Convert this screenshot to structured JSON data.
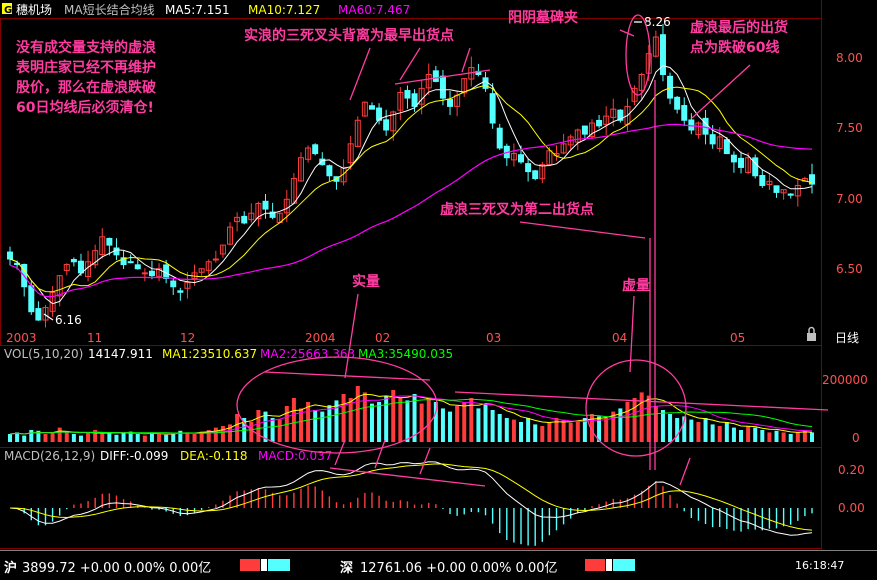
{
  "window": {
    "logo": "G",
    "stock_name": "穗机场",
    "indicator_name": "MA短长结合均线",
    "ma5_label": "MA5:7.151",
    "ma10_label": "MA10:7.127",
    "ma60_label": "MA60:7.467",
    "period_label": "日线"
  },
  "colors": {
    "background": "#000000",
    "up_candle": "#ff3c3c",
    "down_candle": "#54ffff",
    "ma5": "#ffffff",
    "ma10": "#ffff00",
    "ma60": "#ff00ff",
    "vol_ma1": "#ffff00",
    "vol_ma2": "#ff00ff",
    "vol_ma3": "#00ff00",
    "grid": "#800000",
    "annotation": "#ff3ca0",
    "axis_text": "#ff5050"
  },
  "volume_header": {
    "label": "VOL(5,10,20)",
    "value": "14147.911",
    "ma1": "MA1:23510.637",
    "ma2": "MA2:25663.363",
    "ma3": "MA3:35490.035"
  },
  "macd_header": {
    "label": "MACD(26,12,9)",
    "diff": "DIFF:-0.099",
    "dea": "DEA:-0.118",
    "macd": "MACD:0.037"
  },
  "annotations": {
    "left_note": [
      "没有成交量支持的虚浪",
      "表明庄家已经不再维护",
      "股价，那么在虚浪跌破",
      "60日均线后必须清仓!"
    ],
    "real_wave_note": "实浪的三死叉头背离为最早出货点",
    "tombstone_note": "阳阴墓碑夹",
    "last_sell_note": [
      "虚浪最后的出货",
      "点为跌破60线"
    ],
    "second_sell_note": "虚浪三死叉为第二出货点",
    "real_volume_label": "实量",
    "fake_volume_label": "虚量",
    "high_label": "8.26",
    "low_label": "6.16"
  },
  "status_bar": {
    "sh_label": "沪",
    "sh_value": "3899.72 +0.00 0.00% 0.00亿",
    "sz_label": "深",
    "sz_value": "12761.06 +0.00 0.00% 0.00亿",
    "time": "16:18:47"
  },
  "chart_data": [
    {
      "type": "candlestick",
      "title": "穗机场 MA短长结合均线",
      "y_ticks": [
        "6.50",
        "7.00",
        "7.50",
        "8.00"
      ],
      "ylim": [
        6.0,
        8.35
      ],
      "x_ticks": [
        "2003",
        "11",
        "12",
        "2004",
        "02",
        "03",
        "04",
        "05"
      ],
      "annotated_high": 8.26,
      "annotated_low": 6.16,
      "series": [
        {
          "name": "MA5",
          "value": 7.151
        },
        {
          "name": "MA10",
          "value": 7.127
        },
        {
          "name": "MA60",
          "value": 7.467
        }
      ],
      "close_path": [
        6.62,
        6.58,
        6.42,
        6.24,
        6.18,
        6.27,
        6.38,
        6.5,
        6.58,
        6.6,
        6.52,
        6.6,
        6.68,
        6.78,
        6.72,
        6.65,
        6.58,
        6.6,
        6.55,
        6.52,
        6.5,
        6.55,
        6.48,
        6.42,
        6.38,
        6.45,
        6.52,
        6.55,
        6.6,
        6.62,
        6.72,
        6.85,
        6.92,
        6.88,
        6.95,
        7.02,
        6.98,
        6.92,
        6.95,
        7.05,
        7.2,
        7.35,
        7.42,
        7.38,
        7.3,
        7.22,
        7.18,
        7.28,
        7.45,
        7.62,
        7.75,
        7.7,
        7.62,
        7.55,
        7.68,
        7.82,
        7.78,
        7.72,
        7.85,
        7.95,
        7.9,
        7.78,
        7.72,
        7.8,
        7.92,
        8.0,
        7.95,
        7.85,
        7.6,
        7.42,
        7.35,
        7.38,
        7.32,
        7.25,
        7.2,
        7.3,
        7.4,
        7.38,
        7.45,
        7.5,
        7.55,
        7.52,
        7.6,
        7.58,
        7.65,
        7.7,
        7.62,
        7.72,
        7.85,
        7.95,
        8.1,
        8.22,
        7.95,
        7.78,
        7.7,
        7.62,
        7.55,
        7.6,
        7.52,
        7.45,
        7.5,
        7.38,
        7.32,
        7.28,
        7.35,
        7.22,
        7.15,
        7.18,
        7.1,
        7.12,
        7.08,
        7.15,
        7.2,
        7.16
      ]
    },
    {
      "type": "bar",
      "title": "VOL(5,10,20)",
      "y_ticks": [
        "0",
        "200000"
      ],
      "ylim": [
        0,
        280000
      ],
      "series": [
        {
          "name": "MA1",
          "value": 23510.637
        },
        {
          "name": "MA2",
          "value": 25663.363
        },
        {
          "name": "MA3",
          "value": 35490.035
        }
      ],
      "volume_levels": [
        0.1,
        0.12,
        0.08,
        0.15,
        0.14,
        0.1,
        0.12,
        0.18,
        0.12,
        0.1,
        0.08,
        0.12,
        0.15,
        0.1,
        0.12,
        0.09,
        0.11,
        0.13,
        0.1,
        0.08,
        0.12,
        0.1,
        0.09,
        0.11,
        0.14,
        0.12,
        0.1,
        0.13,
        0.15,
        0.18,
        0.2,
        0.22,
        0.35,
        0.3,
        0.25,
        0.4,
        0.38,
        0.3,
        0.28,
        0.45,
        0.55,
        0.42,
        0.5,
        0.4,
        0.38,
        0.46,
        0.52,
        0.6,
        0.55,
        0.7,
        0.62,
        0.48,
        0.5,
        0.58,
        0.65,
        0.55,
        0.52,
        0.6,
        0.48,
        0.55,
        0.5,
        0.42,
        0.38,
        0.45,
        0.5,
        0.55,
        0.42,
        0.48,
        0.4,
        0.35,
        0.3,
        0.28,
        0.25,
        0.3,
        0.22,
        0.2,
        0.25,
        0.3,
        0.28,
        0.24,
        0.26,
        0.3,
        0.35,
        0.32,
        0.3,
        0.38,
        0.42,
        0.5,
        0.55,
        0.62,
        0.58,
        0.45,
        0.4,
        0.35,
        0.3,
        0.32,
        0.28,
        0.25,
        0.3,
        0.22,
        0.2,
        0.25,
        0.18,
        0.15,
        0.2,
        0.18,
        0.15,
        0.12,
        0.14,
        0.12,
        0.1,
        0.12,
        0.15,
        0.12
      ]
    },
    {
      "type": "bar",
      "title": "MACD(26,12,9)",
      "y_ticks": [
        "0.20",
        "0.00"
      ],
      "ylim": [
        -0.3,
        0.28
      ],
      "series": [
        {
          "name": "DIFF",
          "value": -0.099
        },
        {
          "name": "DEA",
          "value": -0.118
        },
        {
          "name": "MACD",
          "value": 0.037
        }
      ]
    }
  ]
}
